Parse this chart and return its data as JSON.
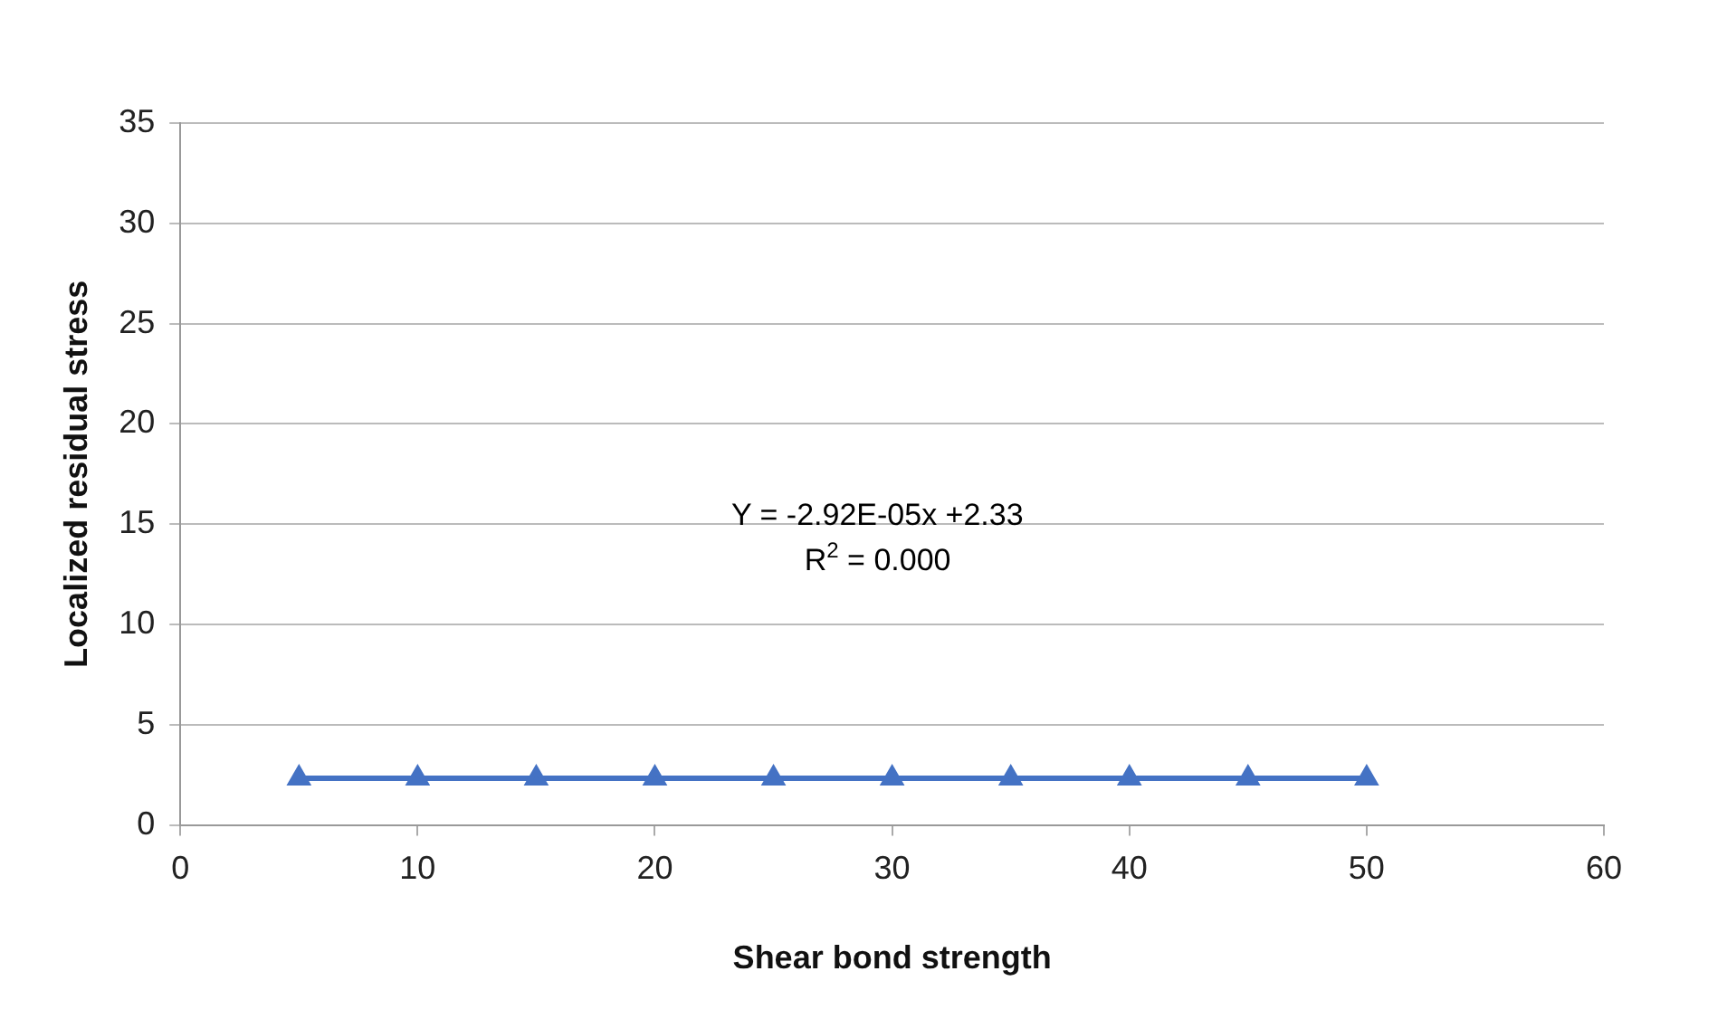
{
  "chart_data": {
    "type": "line",
    "xlabel": "Shear bond strength",
    "ylabel": "Localized residual stress",
    "x": [
      5,
      10,
      15,
      20,
      25,
      30,
      35,
      40,
      45,
      50
    ],
    "series": [
      {
        "color": "#4472c4",
        "values": [
          2.33,
          2.33,
          2.33,
          2.33,
          2.33,
          2.33,
          2.33,
          2.33,
          2.33,
          2.33
        ]
      }
    ],
    "xlim": [
      0,
      60
    ],
    "xticks": [
      0,
      10,
      20,
      30,
      40,
      50,
      60
    ],
    "ylim": [
      0,
      35
    ],
    "yticks": [
      0,
      5,
      10,
      15,
      20,
      25,
      30,
      35
    ],
    "grid": "y",
    "legend": false,
    "marker": "triangle",
    "line_style": "solid",
    "annotations": [
      "Y = -2.92E-05x +2.33",
      "R$^{2}$ = 0.000"
    ]
  }
}
